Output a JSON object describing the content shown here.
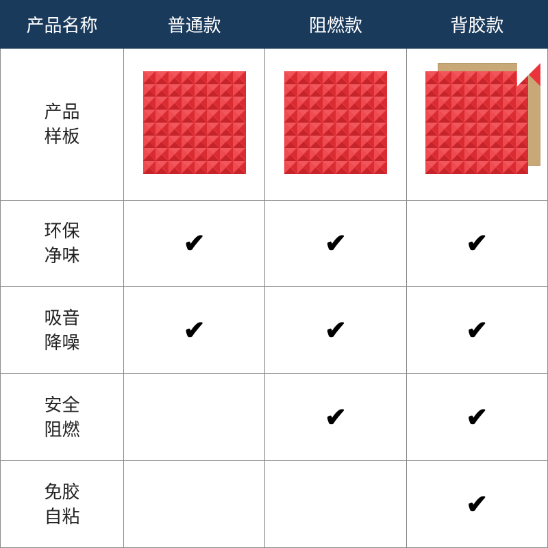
{
  "type": "table",
  "columns": 4,
  "header": {
    "bg_color": "#1a3a5c",
    "text_color": "#ffffff",
    "font_size": 26,
    "cells": [
      "产品名称",
      "普通款",
      "阻燃款",
      "背胶款"
    ]
  },
  "rows": [
    {
      "label": "产品\n样板",
      "kind": "sample",
      "variants": [
        {
          "has_backing": false
        },
        {
          "has_backing": false
        },
        {
          "has_backing": true
        }
      ]
    },
    {
      "label": "环保\n净味",
      "kind": "feature",
      "checks": [
        true,
        true,
        true
      ]
    },
    {
      "label": "吸音\n降噪",
      "kind": "feature",
      "checks": [
        true,
        true,
        true
      ]
    },
    {
      "label": "安全\n阻燃",
      "kind": "feature",
      "checks": [
        false,
        true,
        true
      ]
    },
    {
      "label": "免胶\n自粘",
      "kind": "feature",
      "checks": [
        false,
        false,
        true
      ]
    }
  ],
  "style": {
    "foam_color": "#e8343a",
    "foam_light": "#f0565b",
    "foam_dark": "#c5242a",
    "backing_color": "#c9a878",
    "border_color": "#8a8a8a",
    "check_glyph": "✔",
    "label_font_size": 26,
    "check_font_size": 38,
    "grid": 8
  }
}
